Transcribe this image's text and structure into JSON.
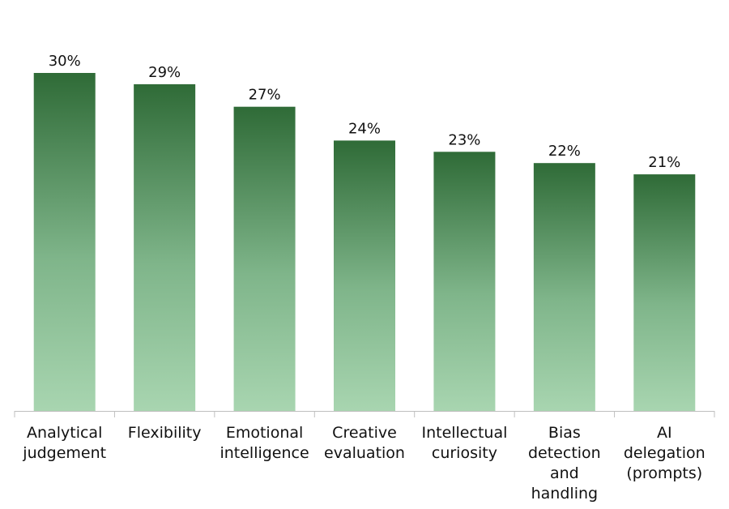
{
  "chart_data": {
    "type": "bar",
    "categories": [
      [
        "Analytical",
        "judgement"
      ],
      [
        "Flexibility"
      ],
      [
        "Emotional",
        "intelligence"
      ],
      [
        "Creative",
        "evaluation"
      ],
      [
        "Intellectual",
        "curiosity"
      ],
      [
        "Bias",
        "detection",
        "and",
        "handling"
      ],
      [
        "AI",
        "delegation",
        "(prompts)"
      ]
    ],
    "values": [
      30,
      29,
      27,
      24,
      23,
      22,
      21
    ],
    "value_labels": [
      "30%",
      "29%",
      "27%",
      "24%",
      "23%",
      "22%",
      "21%"
    ],
    "title": "",
    "xlabel": "",
    "ylabel": "",
    "ylim": [
      0,
      30
    ],
    "grid": false,
    "legend": "none",
    "colors": {
      "bar_top": "#2f6b37",
      "bar_bottom": "#a8d5b0",
      "axis": "#bfbfbf",
      "text": "#111111"
    }
  }
}
